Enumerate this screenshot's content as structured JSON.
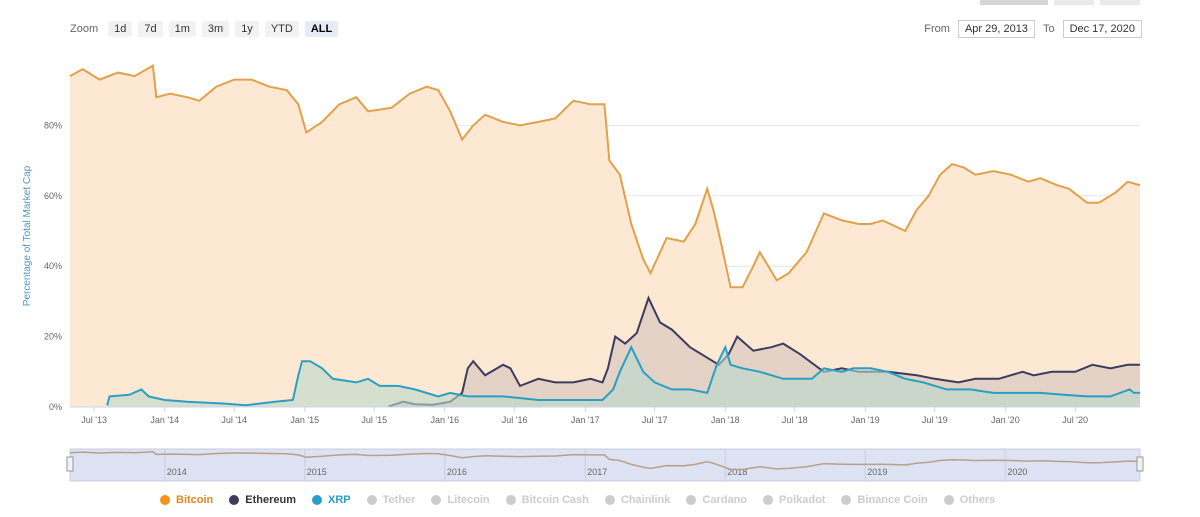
{
  "zoom": {
    "label": "Zoom",
    "buttons": [
      "1d",
      "7d",
      "1m",
      "3m",
      "1y",
      "YTD",
      "ALL"
    ],
    "active": "ALL"
  },
  "range": {
    "from_label": "From",
    "from_value": "Apr 29, 2013",
    "to_label": "To",
    "to_value": "Dec 17, 2020"
  },
  "colors": {
    "bitcoin": "#f7931a",
    "bitcoin_line": "#e2a04a",
    "bitcoin_fill": "#fde9d3",
    "ethereum": "#3c3c5d",
    "ethereum_fill": "#d9c9c0",
    "xrp": "#2a9fc4",
    "xrp_fill": "#b9d8cc",
    "navigator": "#dde3f3",
    "grid": "#e6e6e6"
  },
  "chart_data": {
    "type": "area",
    "ylabel": "Percentage of Total Market Cap",
    "ylim": [
      0,
      100
    ],
    "yticks": [
      "0%",
      "20%",
      "40%",
      "60%",
      "80%"
    ],
    "x_tick_labels": [
      "Jul '13",
      "Jan '14",
      "Jul '14",
      "Jan '15",
      "Jul '15",
      "Jan '16",
      "Jul '16",
      "Jan '17",
      "Jul '17",
      "Jan '18",
      "Jul '18",
      "Jan '19",
      "Jul '19",
      "Jan '20",
      "Jul '20"
    ],
    "x_range": [
      "2013-04-29",
      "2020-12-17"
    ],
    "grid": true,
    "legend_position": "bottom",
    "navigator_labels": [
      "2014",
      "2015",
      "2016",
      "2017",
      "2018",
      "2019",
      "2020"
    ],
    "series": [
      {
        "name": "Bitcoin",
        "visible": true,
        "points": [
          [
            "2013-04-29",
            94
          ],
          [
            "2013-06-01",
            96
          ],
          [
            "2013-07-15",
            93
          ],
          [
            "2013-09-01",
            95
          ],
          [
            "2013-10-15",
            94
          ],
          [
            "2013-12-01",
            97
          ],
          [
            "2013-12-10",
            88
          ],
          [
            "2014-01-15",
            89
          ],
          [
            "2014-03-01",
            88
          ],
          [
            "2014-04-01",
            87
          ],
          [
            "2014-05-15",
            91
          ],
          [
            "2014-07-01",
            93
          ],
          [
            "2014-08-15",
            93
          ],
          [
            "2014-10-01",
            91
          ],
          [
            "2014-11-15",
            90
          ],
          [
            "2014-12-15",
            86
          ],
          [
            "2015-01-05",
            78
          ],
          [
            "2015-02-15",
            81
          ],
          [
            "2015-04-01",
            86
          ],
          [
            "2015-05-15",
            88
          ],
          [
            "2015-06-15",
            84
          ],
          [
            "2015-08-15",
            85
          ],
          [
            "2015-10-01",
            89
          ],
          [
            "2015-11-15",
            91
          ],
          [
            "2015-12-15",
            90
          ],
          [
            "2016-01-15",
            84
          ],
          [
            "2016-02-15",
            76
          ],
          [
            "2016-03-15",
            80
          ],
          [
            "2016-04-15",
            83
          ],
          [
            "2016-06-01",
            81
          ],
          [
            "2016-07-15",
            80
          ],
          [
            "2016-09-01",
            81
          ],
          [
            "2016-10-15",
            82
          ],
          [
            "2016-12-01",
            87
          ],
          [
            "2017-01-15",
            86
          ],
          [
            "2017-02-20",
            86
          ],
          [
            "2017-03-05",
            70
          ],
          [
            "2017-04-01",
            66
          ],
          [
            "2017-05-01",
            52
          ],
          [
            "2017-06-01",
            42
          ],
          [
            "2017-06-20",
            38
          ],
          [
            "2017-08-01",
            48
          ],
          [
            "2017-09-15",
            47
          ],
          [
            "2017-10-15",
            52
          ],
          [
            "2017-11-15",
            62
          ],
          [
            "2017-12-01",
            56
          ],
          [
            "2017-12-20",
            47
          ],
          [
            "2018-01-15",
            34
          ],
          [
            "2018-02-15",
            34
          ],
          [
            "2018-03-15",
            40
          ],
          [
            "2018-04-01",
            44
          ],
          [
            "2018-05-15",
            36
          ],
          [
            "2018-06-15",
            38
          ],
          [
            "2018-08-01",
            44
          ],
          [
            "2018-09-15",
            55
          ],
          [
            "2018-11-01",
            53
          ],
          [
            "2018-12-15",
            52
          ],
          [
            "2019-01-15",
            52
          ],
          [
            "2019-02-15",
            53
          ],
          [
            "2019-04-15",
            50
          ],
          [
            "2019-05-15",
            56
          ],
          [
            "2019-06-15",
            60
          ],
          [
            "2019-07-15",
            66
          ],
          [
            "2019-08-15",
            69
          ],
          [
            "2019-09-15",
            68
          ],
          [
            "2019-10-15",
            66
          ],
          [
            "2019-12-01",
            67
          ],
          [
            "2020-01-15",
            66
          ],
          [
            "2020-03-01",
            64
          ],
          [
            "2020-04-01",
            65
          ],
          [
            "2020-05-15",
            63
          ],
          [
            "2020-06-15",
            62
          ],
          [
            "2020-08-01",
            58
          ],
          [
            "2020-09-01",
            58
          ],
          [
            "2020-10-15",
            61
          ],
          [
            "2020-11-15",
            64
          ],
          [
            "2020-12-17",
            63
          ]
        ]
      },
      {
        "name": "Ethereum",
        "visible": true,
        "points": [
          [
            "2015-08-07",
            0.1
          ],
          [
            "2015-09-15",
            1.5
          ],
          [
            "2015-10-15",
            0.8
          ],
          [
            "2015-12-01",
            0.6
          ],
          [
            "2016-01-15",
            1.5
          ],
          [
            "2016-02-15",
            4
          ],
          [
            "2016-03-01",
            11
          ],
          [
            "2016-03-15",
            13
          ],
          [
            "2016-04-15",
            9
          ],
          [
            "2016-06-01",
            12
          ],
          [
            "2016-06-20",
            11
          ],
          [
            "2016-07-15",
            6
          ],
          [
            "2016-09-01",
            8
          ],
          [
            "2016-10-15",
            7
          ],
          [
            "2016-12-01",
            7
          ],
          [
            "2017-01-15",
            8
          ],
          [
            "2017-02-15",
            7
          ],
          [
            "2017-03-01",
            11
          ],
          [
            "2017-03-20",
            20
          ],
          [
            "2017-04-15",
            18
          ],
          [
            "2017-05-15",
            21
          ],
          [
            "2017-06-15",
            31
          ],
          [
            "2017-07-15",
            24
          ],
          [
            "2017-08-15",
            22
          ],
          [
            "2017-10-01",
            17
          ],
          [
            "2017-11-15",
            14
          ],
          [
            "2017-12-15",
            12
          ],
          [
            "2018-01-10",
            15
          ],
          [
            "2018-02-01",
            20
          ],
          [
            "2018-03-15",
            16
          ],
          [
            "2018-05-01",
            17
          ],
          [
            "2018-06-01",
            18
          ],
          [
            "2018-07-15",
            15
          ],
          [
            "2018-09-15",
            10
          ],
          [
            "2018-11-01",
            11
          ],
          [
            "2018-12-15",
            10
          ],
          [
            "2019-01-15",
            10
          ],
          [
            "2019-03-01",
            10
          ],
          [
            "2019-05-15",
            9
          ],
          [
            "2019-07-01",
            8
          ],
          [
            "2019-09-01",
            7
          ],
          [
            "2019-10-15",
            8
          ],
          [
            "2019-12-15",
            8
          ],
          [
            "2020-02-15",
            10
          ],
          [
            "2020-03-15",
            9
          ],
          [
            "2020-05-01",
            10
          ],
          [
            "2020-07-01",
            10
          ],
          [
            "2020-08-15",
            12
          ],
          [
            "2020-10-01",
            11
          ],
          [
            "2020-11-15",
            12
          ],
          [
            "2020-12-17",
            12
          ]
        ]
      },
      {
        "name": "XRP",
        "visible": true,
        "points": [
          [
            "2013-08-04",
            0.5
          ],
          [
            "2013-08-10",
            3
          ],
          [
            "2013-10-01",
            3.5
          ],
          [
            "2013-11-01",
            5
          ],
          [
            "2013-11-20",
            3
          ],
          [
            "2014-01-01",
            2
          ],
          [
            "2014-03-01",
            1.5
          ],
          [
            "2014-06-01",
            1
          ],
          [
            "2014-08-01",
            0.5
          ],
          [
            "2014-10-15",
            1.5
          ],
          [
            "2014-12-01",
            2
          ],
          [
            "2014-12-15",
            9
          ],
          [
            "2014-12-25",
            13
          ],
          [
            "2015-01-15",
            13
          ],
          [
            "2015-02-15",
            11
          ],
          [
            "2015-03-15",
            8
          ],
          [
            "2015-05-15",
            7
          ],
          [
            "2015-06-15",
            8
          ],
          [
            "2015-07-15",
            6
          ],
          [
            "2015-09-01",
            6
          ],
          [
            "2015-10-15",
            5
          ],
          [
            "2015-12-15",
            3
          ],
          [
            "2016-01-15",
            4
          ],
          [
            "2016-03-01",
            3
          ],
          [
            "2016-06-01",
            3
          ],
          [
            "2016-09-01",
            2
          ],
          [
            "2016-12-15",
            2
          ],
          [
            "2017-02-15",
            2
          ],
          [
            "2017-03-15",
            5
          ],
          [
            "2017-04-01",
            10
          ],
          [
            "2017-05-01",
            17
          ],
          [
            "2017-06-01",
            10
          ],
          [
            "2017-07-01",
            7
          ],
          [
            "2017-08-15",
            5
          ],
          [
            "2017-10-01",
            5
          ],
          [
            "2017-11-15",
            4
          ],
          [
            "2017-12-10",
            12
          ],
          [
            "2018-01-01",
            17
          ],
          [
            "2018-01-15",
            12
          ],
          [
            "2018-02-15",
            11
          ],
          [
            "2018-04-01",
            10
          ],
          [
            "2018-06-01",
            8
          ],
          [
            "2018-08-15",
            8
          ],
          [
            "2018-09-15",
            11
          ],
          [
            "2018-11-01",
            10
          ],
          [
            "2018-12-01",
            11
          ],
          [
            "2019-01-15",
            11
          ],
          [
            "2019-03-01",
            10
          ],
          [
            "2019-04-15",
            8
          ],
          [
            "2019-06-01",
            7
          ],
          [
            "2019-08-01",
            5
          ],
          [
            "2019-10-01",
            5
          ],
          [
            "2019-12-01",
            4
          ],
          [
            "2020-02-01",
            4
          ],
          [
            "2020-04-01",
            4
          ],
          [
            "2020-06-01",
            3.5
          ],
          [
            "2020-08-01",
            3
          ],
          [
            "2020-10-01",
            3
          ],
          [
            "2020-11-20",
            5
          ],
          [
            "2020-12-01",
            4
          ],
          [
            "2020-12-17",
            4
          ]
        ]
      }
    ],
    "legend": [
      {
        "name": "Bitcoin",
        "visible": true,
        "color": "#f7931a"
      },
      {
        "name": "Ethereum",
        "visible": true,
        "color": "#3c3c5d"
      },
      {
        "name": "XRP",
        "visible": true,
        "color": "#2a9fc4"
      },
      {
        "name": "Tether",
        "visible": false,
        "color": "#cccccc"
      },
      {
        "name": "Litecoin",
        "visible": false,
        "color": "#cccccc"
      },
      {
        "name": "Bitcoin Cash",
        "visible": false,
        "color": "#cccccc"
      },
      {
        "name": "Chainlink",
        "visible": false,
        "color": "#cccccc"
      },
      {
        "name": "Cardano",
        "visible": false,
        "color": "#cccccc"
      },
      {
        "name": "Polkadot",
        "visible": false,
        "color": "#cccccc"
      },
      {
        "name": "Binance Coin",
        "visible": false,
        "color": "#cccccc"
      },
      {
        "name": "Others",
        "visible": false,
        "color": "#cccccc"
      }
    ]
  }
}
